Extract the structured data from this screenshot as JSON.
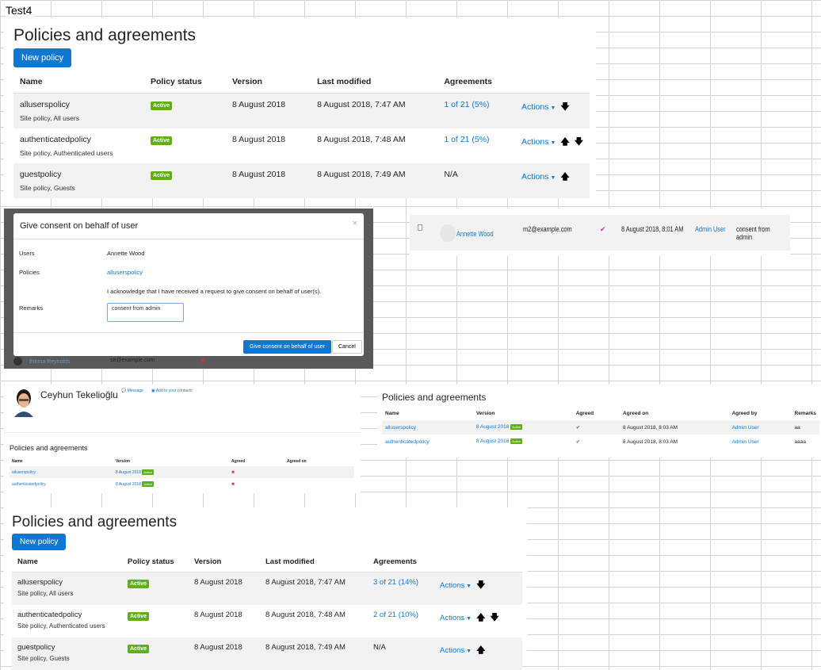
{
  "doc_title": "Test4",
  "top_panel": {
    "title": "Policies and agreements",
    "new_policy": "New policy",
    "headers": [
      "Name",
      "Policy status",
      "Version",
      "Last modified",
      "Agreements"
    ],
    "rows": [
      {
        "name": "alluserspolicy",
        "sub": "Site policy, All users",
        "status": "Active",
        "version": "8 August 2018",
        "modified": "8 August 2018, 7:47 AM",
        "agreements": "1 of 21 (5%)",
        "actions": "Actions",
        "up": "",
        "down": "🡇"
      },
      {
        "name": "authenticatedpolicy",
        "sub": "Site policy, Authenticated users",
        "status": "Active",
        "version": "8 August 2018",
        "modified": "8 August 2018, 7:48 AM",
        "agreements": "1 of 21 (5%)",
        "actions": "Actions",
        "up": "🡅",
        "down": "🡇"
      },
      {
        "name": "guestpolicy",
        "sub": "Site policy, Guests",
        "status": "Active",
        "version": "8 August 2018",
        "modified": "8 August 2018, 7:49 AM",
        "agreements": "N/A",
        "actions": "Actions",
        "up": "🡅",
        "down": ""
      }
    ]
  },
  "modal": {
    "title": "Give consent on behalf of user",
    "close": "×",
    "users_label": "Users",
    "users_value": "Annette Wood",
    "policies_label": "Policies",
    "policies_value": "alluserspolicy",
    "ack": "I acknowledge that I have received a request to give consent on behalf of user(s).",
    "remarks_label": "Remarks",
    "remarks_value": "consent from admin",
    "submit": "Give consent on behalf of user",
    "cancel": "Cancel",
    "behind_name": "Emma Reynolds",
    "behind_email": "s8@example.com",
    "behind_mark": "✖"
  },
  "consent_row": {
    "name": "Annette Wood",
    "email": "m2@example.com",
    "check": "✔",
    "date": "8 August 2018, 8:01 AM",
    "by": "Admin User",
    "remarks": "consent from admin"
  },
  "profile": {
    "name": "Ceyhun Tekelioğlu",
    "message": "Message",
    "add_contacts": "Add to your contacts",
    "section": "Policies and agreements",
    "headers": [
      "Name",
      "Version",
      "Agreed",
      "Agreed on"
    ],
    "rows": [
      {
        "name": "alluserspolicy",
        "version": "8 August 2018",
        "badge": "Active",
        "agreed": "✖",
        "on": ""
      },
      {
        "name": "authenticatedpolicy",
        "version": "8 August 2018",
        "badge": "Active",
        "agreed": "✖",
        "on": ""
      }
    ]
  },
  "agreed_panel": {
    "title": "Policies and agreements",
    "headers": [
      "Name",
      "Version",
      "Agreed",
      "Agreed on",
      "Agreed by",
      "Remarks"
    ],
    "rows": [
      {
        "name": "alluserspolicy",
        "version": "8 August 2018",
        "badge": "Active",
        "agreed": "✔",
        "on": "8 August 2018, 8:03 AM",
        "by": "Admin User",
        "remarks": "aa"
      },
      {
        "name": "authenticatedpolicy",
        "version": "8 August 2018",
        "badge": "Active",
        "agreed": "✔",
        "on": "8 August 2018, 8:03 AM",
        "by": "Admin User",
        "remarks": "aaaa"
      }
    ]
  },
  "bottom_panel": {
    "title": "Policies and agreements",
    "new_policy": "New policy",
    "headers": [
      "Name",
      "Policy status",
      "Version",
      "Last modified",
      "Agreements"
    ],
    "rows": [
      {
        "name": "alluserspolicy",
        "sub": "Site policy, All users",
        "status": "Active",
        "version": "8 August 2018",
        "modified": "8 August 2018, 7:47 AM",
        "agreements": "3 of 21 (14%)",
        "actions": "Actions",
        "up": "",
        "down": "🡇"
      },
      {
        "name": "authenticatedpolicy",
        "sub": "Site policy, Authenticated users",
        "status": "Active",
        "version": "8 August 2018",
        "modified": "8 August 2018, 7:48 AM",
        "agreements": "2 of 21 (10%)",
        "actions": "Actions",
        "up": "🡅",
        "down": "🡇"
      },
      {
        "name": "guestpolicy",
        "sub": "Site policy, Guests",
        "status": "Active",
        "version": "8 August 2018",
        "modified": "8 August 2018, 7:49 AM",
        "agreements": "N/A",
        "actions": "Actions",
        "up": "🡅",
        "down": ""
      }
    ]
  }
}
